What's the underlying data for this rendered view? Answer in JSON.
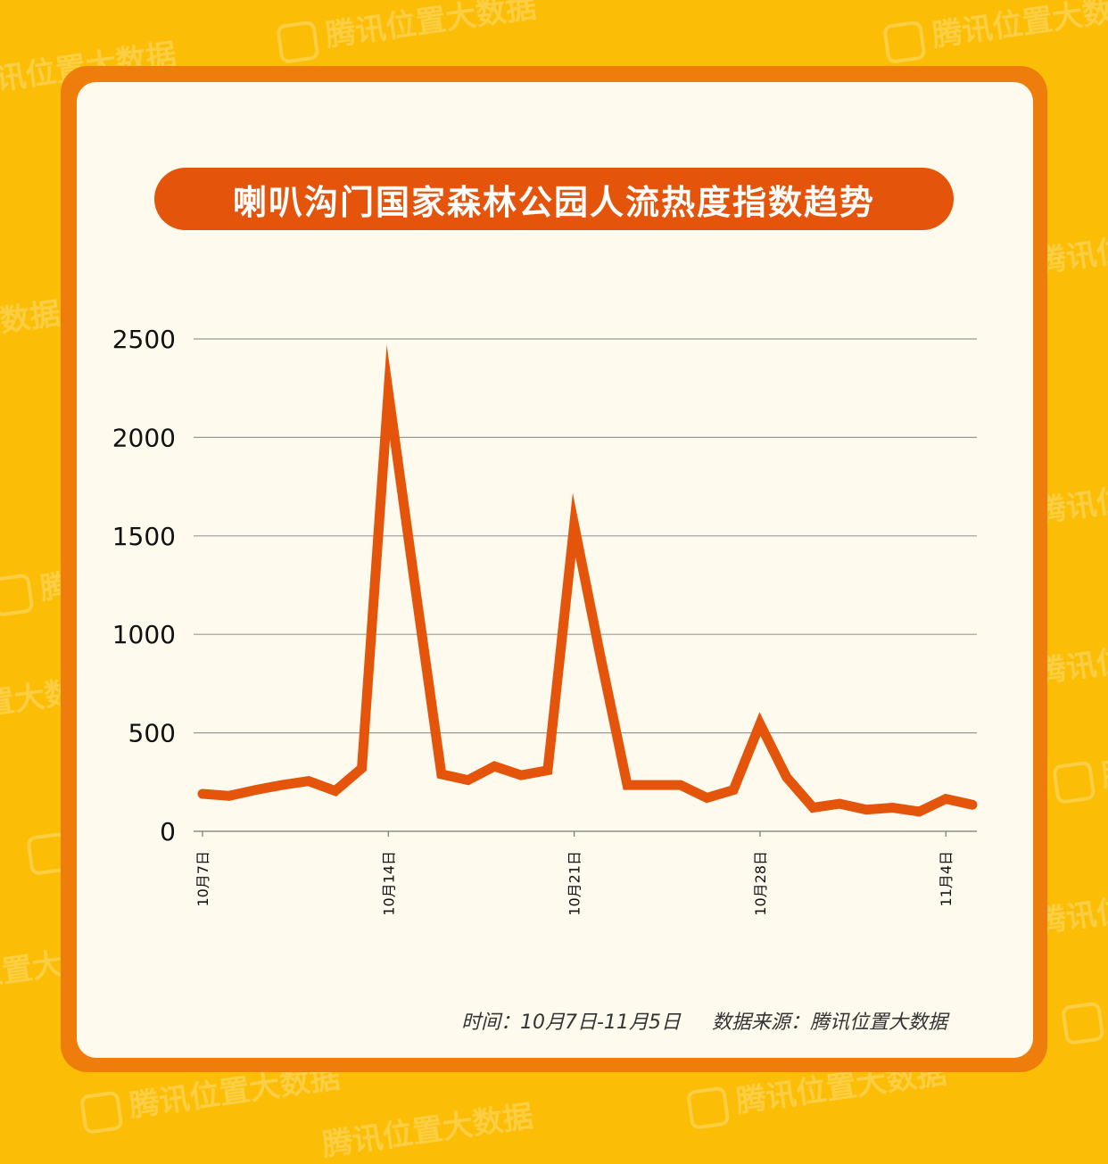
{
  "watermark": "腾讯位置大数据",
  "title": "喇叭沟门国家森林公园人流热度指数趋势",
  "footer": {
    "time_range": "时间：10月7日-11月5日",
    "source": "数据来源：腾讯位置大数据"
  },
  "colors": {
    "background": "#fbbd06",
    "frame": "#ef7d0c",
    "card": "#fefbee",
    "line": "#e4540b",
    "grid": "#999999"
  },
  "chart_data": {
    "type": "line",
    "title": "喇叭沟门国家森林公园人流热度指数趋势",
    "xlabel": "",
    "ylabel": "",
    "ylim": [
      0,
      2500
    ],
    "yticks": [
      0,
      500,
      1000,
      1500,
      2000,
      2500
    ],
    "grid": true,
    "xtick_labels": [
      {
        "index": 0,
        "label": "10月7日"
      },
      {
        "index": 7,
        "label": "10月14日"
      },
      {
        "index": 14,
        "label": "10月21日"
      },
      {
        "index": 21,
        "label": "10月28日"
      },
      {
        "index": 28,
        "label": "11月4日"
      }
    ],
    "series": [
      {
        "values": [
          190,
          180,
          210,
          235,
          255,
          205,
          320,
          2230,
          1250,
          290,
          260,
          330,
          285,
          310,
          1555,
          880,
          235,
          235,
          235,
          170,
          210,
          545,
          275,
          120,
          140,
          110,
          120,
          100,
          165,
          135
        ]
      }
    ]
  }
}
